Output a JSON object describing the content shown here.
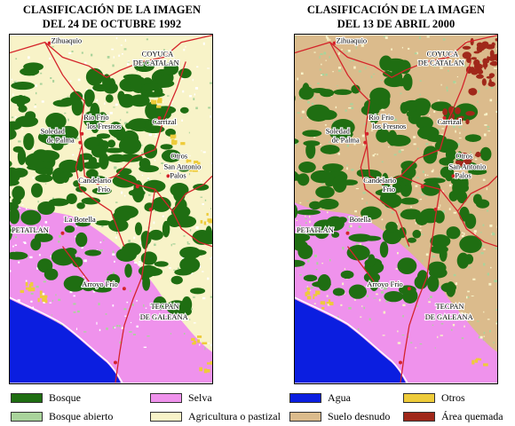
{
  "colors": {
    "bosque": "#1f6e12",
    "bosque_abierto": "#a9d39b",
    "selva": "#ef92ec",
    "agricultura": "#f8f3c8",
    "agua": "#0b1ee0",
    "suelo": "#dbbb8c",
    "otros": "#eecb3a",
    "quemada": "#a0281a",
    "roads": "#d4232a"
  },
  "maps": [
    {
      "id": "1992",
      "title_line1": "CLASIFICACIÓN DE LA IMAGEN",
      "title_line2": "DEL 24 DE OCTUBRE 1992",
      "towns": {
        "zihuaquio": "Zihuaquio",
        "coyuca_1": "COYUCA",
        "coyuca_2": "DE CATALAN",
        "rio_frio_1": "Río Frio",
        "rio_frio_2": "los Fresnos",
        "soledad_1": "Soledad",
        "soledad_2": "de Palma",
        "carrizal": "Carrizal",
        "otros_town": "Otros",
        "san_antonio_1": "San Antonio",
        "san_antonio_2": "Palos",
        "candelario": "Candelario",
        "cerro_frio": "Frío",
        "la_botella": "La Botella",
        "petatlan": "PETATLAN",
        "arroyo_frio": "Arroyo Frío",
        "tecpan_1": "TECPAN",
        "tecpan_2": "DE GALEANA"
      }
    },
    {
      "id": "2000",
      "title_line1": "CLASIFICACIÓN DE LA IMAGEN",
      "title_line2": "DEL 13 DE ABRIL 2000",
      "towns": {
        "zihuaquio": "Zihuaquio",
        "coyuca_1": "COYUCA",
        "coyuca_2": "DE CATALAN",
        "rio_frio_1": "Río Frio",
        "rio_frio_2": "los Fresnos",
        "soledad_1": "Soledad",
        "soledad_2": "de Palma",
        "carrizal": "Carrizal",
        "otros_town": "Otros",
        "san_antonio_1": "San Antonio",
        "san_antonio_2": "Palos",
        "candelario": "Candelario",
        "cerro_frio": "Frío",
        "la_botella": "Botella",
        "petatlan": "PETATLAN",
        "arroyo_frio": "Arroyo Frío",
        "tecpan_1": "TECPAN",
        "tecpan_2": "DE GALEANA"
      }
    }
  ],
  "legend": [
    {
      "label": "Bosque",
      "color": "#1f6e12"
    },
    {
      "label": "Selva",
      "color": "#ef92ec"
    },
    {
      "label": "Agua",
      "color": "#0b1ee0"
    },
    {
      "label": "Otros",
      "color": "#eecb3a"
    },
    {
      "label": "Bosque abierto",
      "color": "#a9d39b"
    },
    {
      "label": "Agricultura o pastizal",
      "color": "#f8f3c8"
    },
    {
      "label": "Suelo desnudo",
      "color": "#dbbb8c"
    },
    {
      "label": "Área quemada",
      "color": "#a0281a"
    }
  ]
}
